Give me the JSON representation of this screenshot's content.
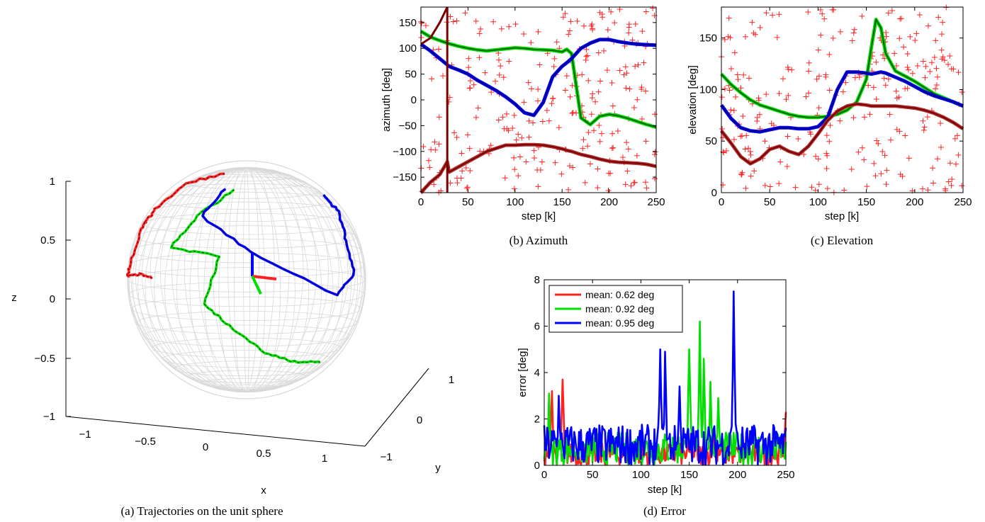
{
  "captions": {
    "a": "(a) Trajectories on the unit sphere",
    "b": "(b) Azimuth",
    "c": "(c) Elevation",
    "d": "(d) Error"
  },
  "colors": {
    "red_raw": "#ff2222",
    "green_raw": "#00e000",
    "blue_raw": "#0000ff",
    "dark_red": "#7a0000",
    "dark_green": "#006400",
    "dark_blue": "#000080",
    "sphere_grid": "#d8d8d8"
  },
  "chart_data": [
    {
      "id": "a",
      "type": "scatter",
      "xlabel": "x",
      "ylabel": "y",
      "zlabel": "z",
      "xticks": [
        "−1",
        "−0.5",
        "0",
        "0.5",
        "1"
      ],
      "yticks": [
        "−1",
        "0",
        "1"
      ],
      "zticks": [
        "−1",
        "−0.5",
        "0",
        "0.5",
        "1"
      ],
      "xlim": [
        -1,
        1
      ],
      "ylim": [
        -1,
        1
      ],
      "zlim": [
        -1,
        1
      ],
      "series": [
        {
          "color": "red",
          "points": [
            [
              -0.25,
              0.05,
              0.98
            ],
            [
              -0.35,
              -0.4,
              0.85
            ],
            [
              -0.55,
              -0.6,
              0.62
            ],
            [
              -0.75,
              -0.4,
              0.55
            ],
            [
              -0.6,
              -0.3,
              0.35
            ],
            [
              -0.85,
              -0.45,
              0.1
            ],
            [
              -0.72,
              -0.5,
              0.02
            ],
            [
              -0.5,
              -0.8,
              0.0
            ],
            [
              -0.35,
              -0.9,
              -0.05
            ]
          ]
        },
        {
          "color": "green",
          "points": [
            [
              0.25,
              -0.6,
              0.7
            ],
            [
              0.05,
              -0.8,
              0.45
            ],
            [
              -0.15,
              -0.95,
              0.2
            ],
            [
              0.3,
              -0.9,
              0.1
            ],
            [
              0.15,
              -0.9,
              -0.3
            ],
            [
              0.35,
              -0.8,
              -0.55
            ],
            [
              0.5,
              -0.5,
              -0.75
            ],
            [
              0.6,
              -0.2,
              -0.8
            ],
            [
              0.7,
              0.2,
              -0.85
            ]
          ]
        },
        {
          "color": "blue",
          "points": [
            [
              0.6,
              0.4,
              0.85
            ],
            [
              0.9,
              0.2,
              0.65
            ],
            [
              0.98,
              0.05,
              0.3
            ],
            [
              0.95,
              0.1,
              0.0
            ],
            [
              0.7,
              -0.1,
              -0.15
            ],
            [
              0.4,
              -0.6,
              0.1
            ],
            [
              0.1,
              -0.9,
              0.5
            ],
            [
              0.2,
              -0.7,
              0.8
            ]
          ]
        }
      ]
    },
    {
      "id": "b",
      "type": "line",
      "xlabel": "step [k]",
      "ylabel": "azimuth [deg]",
      "xlim": [
        0,
        250
      ],
      "ylim": [
        -180,
        180
      ],
      "xticks": [
        0,
        50,
        100,
        150,
        200,
        250
      ],
      "yticks": [
        -150,
        -100,
        -50,
        0,
        50,
        100,
        150
      ],
      "x": [
        0,
        10,
        20,
        28,
        30,
        40,
        50,
        60,
        70,
        80,
        90,
        100,
        110,
        120,
        130,
        140,
        150,
        155,
        160,
        170,
        180,
        190,
        200,
        210,
        220,
        230,
        240,
        250
      ],
      "series": [
        {
          "color": "green",
          "values": [
            133,
            122,
            115,
            110,
            109,
            104,
            100,
            97,
            95,
            97,
            99,
            101,
            100,
            98,
            97,
            96,
            93,
            98,
            90,
            -35,
            -48,
            -32,
            -28,
            -31,
            -36,
            -42,
            -48,
            -53
          ]
        },
        {
          "color": "blue",
          "values": [
            108,
            95,
            80,
            68,
            65,
            58,
            50,
            38,
            28,
            18,
            6,
            -8,
            -25,
            -30,
            -5,
            45,
            65,
            72,
            80,
            100,
            110,
            117,
            117,
            113,
            110,
            108,
            107,
            106
          ]
        },
        {
          "color": "dark_red",
          "values": [
            -180,
            -160,
            -145,
            -120,
            -140,
            -130,
            -120,
            -110,
            -100,
            -94,
            -88,
            -88,
            -87,
            -87,
            -88,
            -91,
            -95,
            -98,
            -100,
            -106,
            -110,
            -115,
            -119,
            -121,
            -122,
            -123,
            -125,
            -129
          ]
        }
      ],
      "wrap_segment": {
        "x": [
          0,
          10,
          20,
          28
        ],
        "values": [
          108,
          120,
          150,
          180
        ]
      },
      "markers": "+"
    },
    {
      "id": "c",
      "type": "line",
      "xlabel": "step [k]",
      "ylabel": "elevation [deg]",
      "xlim": [
        0,
        250
      ],
      "ylim": [
        0,
        180
      ],
      "xticks": [
        0,
        50,
        100,
        150,
        200,
        250
      ],
      "yticks": [
        0,
        50,
        100,
        150
      ],
      "x": [
        0,
        10,
        20,
        30,
        40,
        50,
        60,
        70,
        80,
        90,
        100,
        110,
        120,
        130,
        140,
        150,
        155,
        160,
        165,
        170,
        180,
        190,
        200,
        210,
        220,
        230,
        240,
        250
      ],
      "series": [
        {
          "color": "green",
          "values": [
            115,
            105,
            97,
            90,
            85,
            82,
            79,
            76,
            74,
            73,
            73,
            74,
            76,
            80,
            88,
            110,
            140,
            168,
            160,
            135,
            118,
            113,
            108,
            102,
            96,
            92,
            88,
            84
          ]
        },
        {
          "color": "blue",
          "values": [
            85,
            72,
            63,
            60,
            59,
            61,
            63,
            63,
            62,
            62,
            64,
            73,
            100,
            117,
            117,
            116,
            115,
            116,
            117,
            116,
            112,
            108,
            103,
            98,
            94,
            91,
            88,
            84
          ]
        },
        {
          "color": "dark_red",
          "values": [
            60,
            48,
            35,
            28,
            33,
            42,
            45,
            40,
            37,
            45,
            57,
            70,
            79,
            84,
            86,
            85,
            84,
            84,
            84,
            84,
            84,
            83,
            82,
            80,
            77,
            73,
            68,
            62
          ]
        }
      ],
      "markers": "+"
    },
    {
      "id": "d",
      "type": "line",
      "xlabel": "step [k]",
      "ylabel": "error [deg]",
      "xlim": [
        0,
        250
      ],
      "ylim": [
        0,
        8
      ],
      "xticks": [
        0,
        50,
        100,
        150,
        200,
        250
      ],
      "yticks": [
        0,
        2,
        4,
        6,
        8
      ],
      "legend": [
        "mean: 0.62 deg",
        "mean: 0.92 deg",
        "mean: 0.95 deg"
      ],
      "legend_position": "top-left",
      "peaks": {
        "red": [
          [
            19,
            3.7
          ],
          [
            8,
            3.2
          ],
          [
            250,
            2.3
          ],
          [
            175,
            1.3
          ]
        ],
        "green": [
          [
            161,
            6.2
          ],
          [
            165,
            4.6
          ],
          [
            150,
            5.0
          ],
          [
            172,
            3.6
          ],
          [
            180,
            2.9
          ],
          [
            5,
            3.1
          ]
        ],
        "blue": [
          [
            196,
            7.5
          ],
          [
            120,
            5.0
          ],
          [
            125,
            4.9
          ],
          [
            140,
            3.4
          ],
          [
            15,
            3.0
          ]
        ]
      },
      "series": [
        {
          "name": "mean: 0.62 deg",
          "color": "red"
        },
        {
          "name": "mean: 0.92 deg",
          "color": "green"
        },
        {
          "name": "mean: 0.95 deg",
          "color": "blue"
        }
      ]
    }
  ]
}
